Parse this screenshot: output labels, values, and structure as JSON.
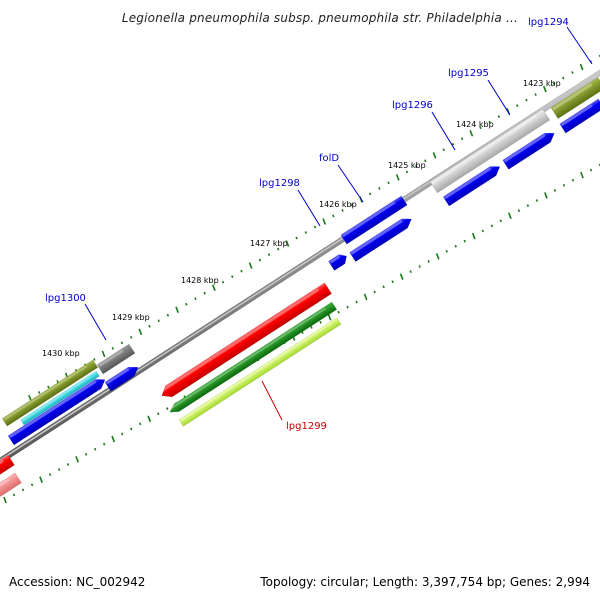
{
  "title": "Legionella pneumophila subsp. pneumophila str. Philadelphia ...",
  "footer": {
    "accession": "Accession: NC_002942",
    "stats": "Topology: circular; Length: 3,397,754 bp; Genes: 2,994"
  },
  "colors": {
    "gene_label_forward": "#0000cc",
    "gene_label_reverse": "#cc0000",
    "tick": "#1a7a1a",
    "axis": "#777777"
  },
  "scale_labels": [
    "1423 kbp",
    "1424 kbp",
    "1425 kbp",
    "1426 kbp",
    "1427 kbp",
    "1428 kbp",
    "1429 kbp",
    "1430 kbp"
  ],
  "gene_labels": [
    {
      "text": "lpg1294",
      "strand": "forward"
    },
    {
      "text": "lpg1295",
      "strand": "forward"
    },
    {
      "text": "lpg1296",
      "strand": "forward"
    },
    {
      "text": "folD",
      "strand": "forward"
    },
    {
      "text": "lpg1298",
      "strand": "forward"
    },
    {
      "text": "lpg1300",
      "strand": "forward"
    },
    {
      "text": "lpg1299",
      "strand": "reverse"
    }
  ]
}
